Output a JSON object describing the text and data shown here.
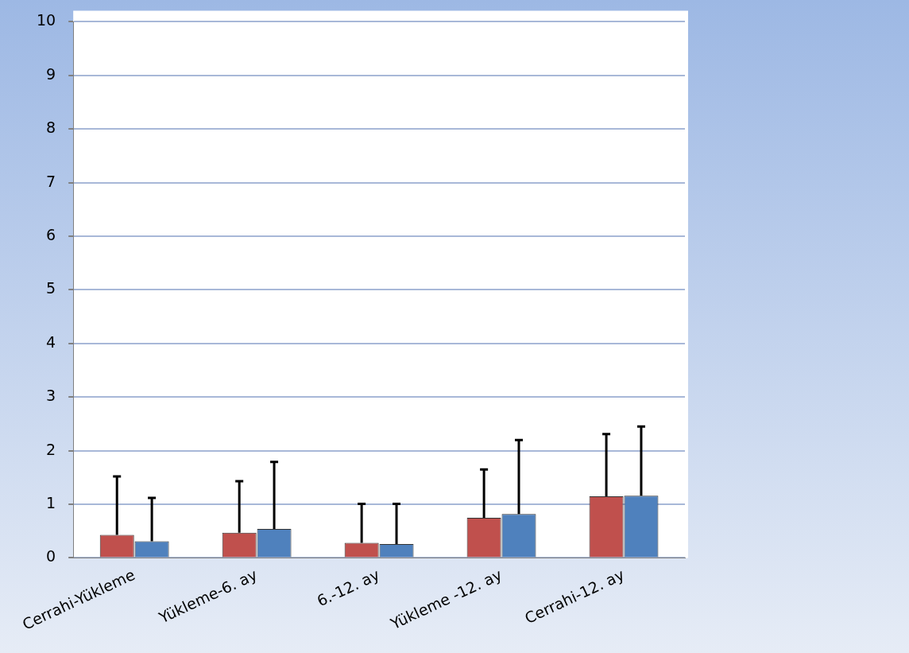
{
  "chart_data": {
    "type": "bar",
    "categories": [
      "Cerrahi-Yükleme",
      "Yükleme-6. ay",
      "6.-12. ay",
      "Yükleme -12. ay",
      "Cerrahi-12. ay"
    ],
    "series": [
      {
        "color": "#c0504d",
        "values": [
          0.43,
          0.47,
          0.28,
          0.75,
          1.15
        ],
        "errors": [
          [
            0.43,
            1.52
          ],
          [
            0.47,
            1.43
          ],
          [
            0.28,
            1.01
          ],
          [
            0.75,
            1.65
          ],
          [
            1.15,
            2.31
          ]
        ]
      },
      {
        "color": "#4f81bd",
        "values": [
          0.31,
          0.54,
          0.26,
          0.82,
          1.16
        ],
        "errors": [
          [
            0.31,
            1.12
          ],
          [
            0.54,
            1.79
          ],
          [
            0.26,
            1.01
          ],
          [
            0.82,
            2.2
          ],
          [
            1.16,
            2.45
          ]
        ]
      }
    ],
    "ylim": [
      0,
      10
    ],
    "yticks": [
      0,
      1,
      2,
      3,
      4,
      5,
      6,
      7,
      8,
      9,
      10
    ],
    "grid": "y"
  }
}
